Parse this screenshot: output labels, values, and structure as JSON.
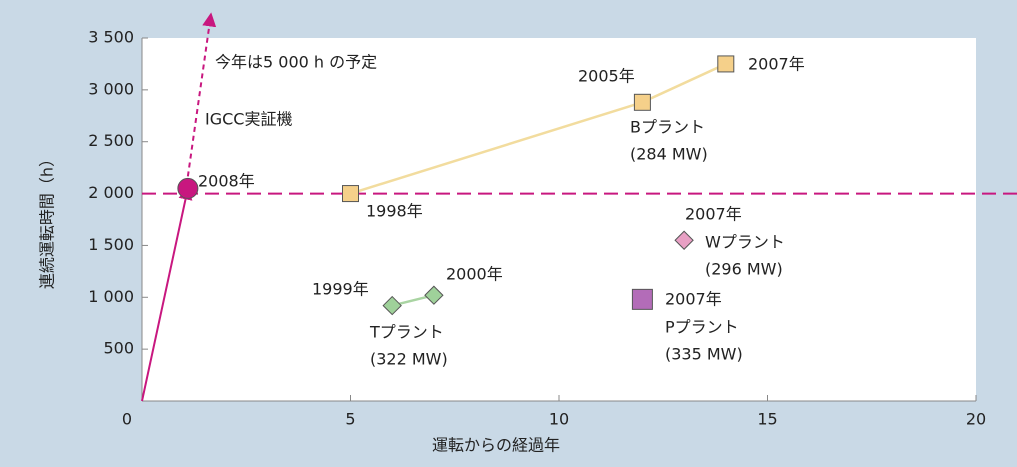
{
  "chart_data": {
    "type": "line",
    "xlabel": "運転からの経過年",
    "ylabel": "連続運転時間（h）",
    "xlim": [
      0,
      20
    ],
    "ylim": [
      0,
      3500
    ],
    "xticks": [
      0,
      5,
      10,
      15,
      20
    ],
    "yticks": [
      {
        "value": 500,
        "label": "500"
      },
      {
        "value": 1000,
        "label": "1 000"
      },
      {
        "value": 1500,
        "label": "1 500"
      },
      {
        "value": 2000,
        "label": "2 000"
      },
      {
        "value": 2500,
        "label": "2 500"
      },
      {
        "value": 3000,
        "label": "3 000"
      },
      {
        "value": 3500,
        "label": "3 500"
      }
    ],
    "reference_line": {
      "y": 2000,
      "color": "#c8177f"
    },
    "annotations": [
      "今年は5 000 h の予定"
    ],
    "projection": {
      "x": [
        1.1,
        1.65
      ],
      "values": [
        2050,
        3720
      ],
      "color": "#c8177f"
    },
    "series": [
      {
        "name": "IGCC実証機",
        "color": "#c8177f",
        "marker": "circle",
        "x": [
          0,
          1.1
        ],
        "values": [
          0,
          2050
        ],
        "point_labels": [
          null,
          "2008年"
        ]
      },
      {
        "name": "Bプラント",
        "capacity": "(284 MW)",
        "color": "#f5d08a",
        "line_color": "#f2dc9e",
        "marker": "square",
        "x": [
          5,
          12,
          14
        ],
        "values": [
          2000,
          2880,
          3250
        ],
        "point_labels": [
          "1998年",
          "2005年",
          "2007年"
        ]
      },
      {
        "name": "Tプラント",
        "capacity": "(322 MW)",
        "color": "#9fd19a",
        "line_color": "#a9d4a2",
        "marker": "diamond",
        "x": [
          6,
          7
        ],
        "values": [
          920,
          1020
        ],
        "point_labels": [
          "1999年",
          "2000年"
        ]
      },
      {
        "name": "Wプラント",
        "capacity": "(296 MW)",
        "color": "#e8a0c4",
        "marker": "diamond",
        "x": [
          13
        ],
        "values": [
          1550
        ],
        "point_labels": [
          "2007年"
        ]
      },
      {
        "name": "Pプラント",
        "capacity": "(335 MW)",
        "color": "#b36cb8",
        "marker": "square",
        "x": [
          12
        ],
        "values": [
          980
        ],
        "point_labels": [
          "2007年"
        ]
      }
    ]
  }
}
